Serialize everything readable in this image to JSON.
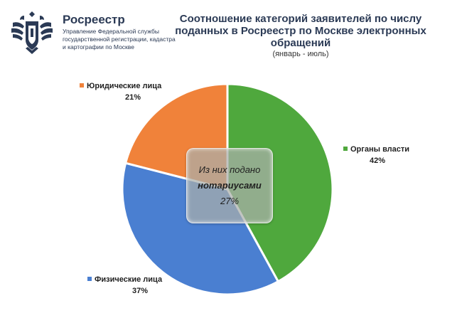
{
  "header": {
    "org_name": "Росреестр",
    "org_subtitle": "Управление Федеральной службы государственной регистрации, кадастра и картографии по Москве",
    "title": "Соотношение категорий заявителей по числу поданных в Росреестр по Москве электронных обращений",
    "subtitle": "(январь - июль)"
  },
  "chart_data": {
    "type": "pie",
    "title": "Соотношение категорий заявителей по числу поданных в Росреестр по Москве электронных обращений",
    "subtitle": "(январь - июль)",
    "slices": [
      {
        "name": "Органы власти",
        "value": 42,
        "label": "42%",
        "color": "#4fa83d"
      },
      {
        "name": "Физические лица",
        "value": 37,
        "label": "37%",
        "color": "#4a7fd1"
      },
      {
        "name": "Юридические лица",
        "value": 21,
        "label": "21%",
        "color": "#f0823a"
      }
    ],
    "annotation": {
      "line1": "Из них подано",
      "line2": "нотариусами",
      "line3": "27%"
    }
  },
  "colors": {
    "title": "#2b3a55",
    "logo": "#2b3a55"
  }
}
